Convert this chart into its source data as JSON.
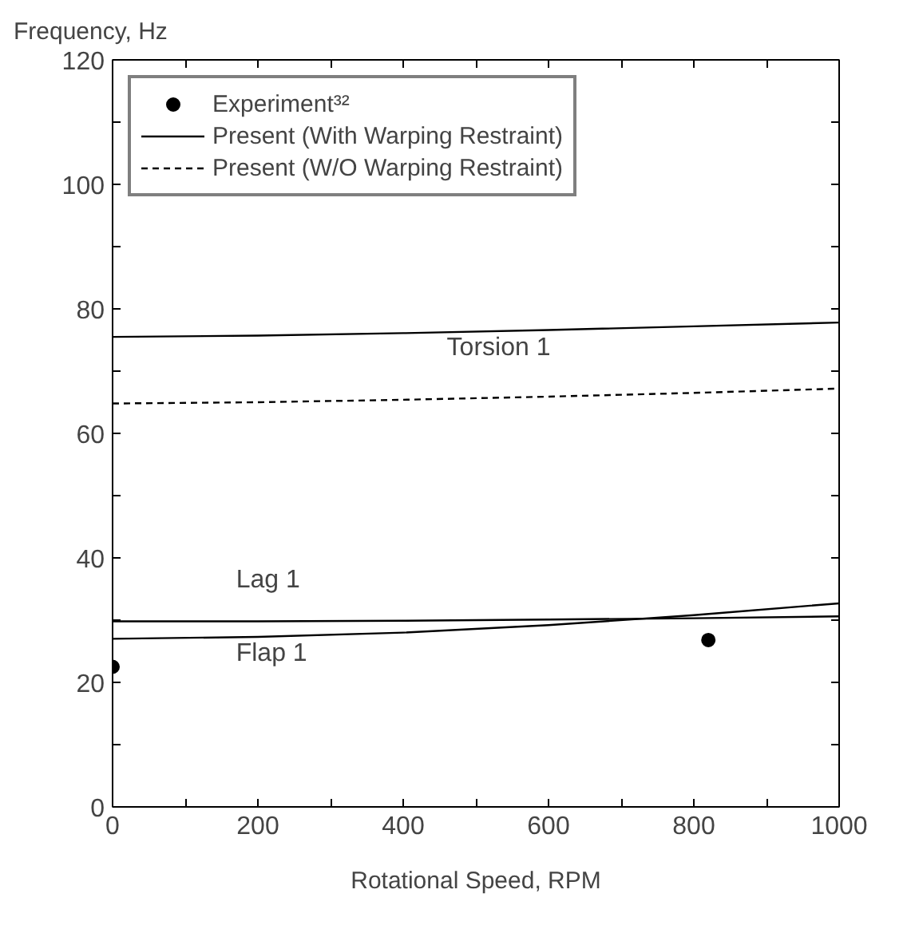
{
  "chart_data": {
    "type": "line",
    "xlabel": "Rotational Speed, RPM",
    "ylabel": "Frequency, Hz",
    "xlim": [
      0,
      1000
    ],
    "ylim": [
      0,
      120
    ],
    "xticks": [
      0,
      {
        "value": 100,
        "label": null
      },
      200,
      {
        "value": 300,
        "label": null
      },
      400,
      {
        "value": 500,
        "label": null
      },
      600,
      {
        "value": 700,
        "label": null
      },
      800,
      {
        "value": 900,
        "label": null
      },
      1000
    ],
    "yticks": [
      0,
      {
        "value": 10,
        "label": null
      },
      20,
      {
        "value": 30,
        "label": null
      },
      40,
      {
        "value": 50,
        "label": null
      },
      60,
      {
        "value": 70,
        "label": null
      },
      80,
      {
        "value": 90,
        "label": null
      },
      100,
      {
        "value": 110,
        "label": null
      },
      120
    ],
    "series": [
      {
        "name": "Experiment³²",
        "type": "scatter",
        "marker": "circle",
        "color": "#000000",
        "x": [
          0,
          820
        ],
        "values": [
          22.5,
          26.8
        ]
      },
      {
        "name": "Present (With Warping Restraint)",
        "line_style": "solid",
        "color": "#000000",
        "x": [
          0,
          200,
          400,
          600,
          800,
          1000
        ],
        "values": [
          75.5,
          75.7,
          76.1,
          76.6,
          77.2,
          77.8
        ]
      },
      {
        "name": "Present (W/O Warping Restraint)",
        "line_style": "dashed",
        "color": "#000000",
        "x": [
          0,
          200,
          400,
          600,
          800,
          1000
        ],
        "values": [
          64.8,
          65.0,
          65.4,
          65.9,
          66.5,
          67.2
        ]
      },
      {
        "line_style": "solid",
        "color": "#000000",
        "x": [
          0,
          200,
          400,
          600,
          800,
          1000
        ],
        "values": [
          29.8,
          29.8,
          29.9,
          30.1,
          30.3,
          30.6
        ]
      },
      {
        "line_style": "solid",
        "color": "#000000",
        "x": [
          0,
          200,
          400,
          600,
          800,
          1000
        ],
        "values": [
          27.0,
          27.3,
          28.0,
          29.2,
          30.8,
          32.7
        ]
      }
    ],
    "annotations": [
      "Torsion 1",
      "Lag 1",
      "Flap 1"
    ],
    "legend": "top left"
  }
}
